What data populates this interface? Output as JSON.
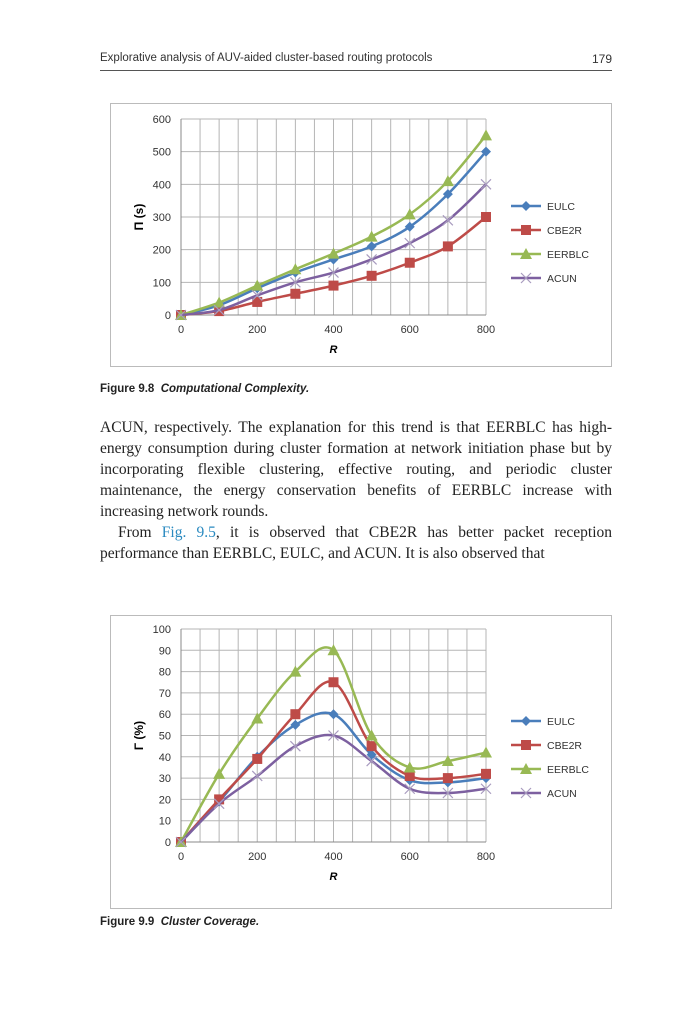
{
  "header": {
    "running_title": "Explorative analysis of AUV-aided cluster-based routing protocols",
    "page_number": "179"
  },
  "figure1": {
    "label": "Figure 9.8",
    "caption": "Computational Complexity."
  },
  "figure2": {
    "label": "Figure 9.9",
    "caption": "Cluster Coverage."
  },
  "body": {
    "para1": "ACUN, respectively. The explanation for this trend is that EERBLC has high-energy consumption during cluster formation at network initiation phase but by incorporating flexible clustering, effective routing, and periodic cluster maintenance, the energy conservation benefits of EERBLC increase with increasing network rounds.",
    "para2_pre": "From ",
    "para2_link": "Fig. 9.5",
    "para2_post": ", it is observed that CBE2R has better packet reception performance than EERBLC, EULC, and ACUN. It is also observed that"
  },
  "chart_data": [
    {
      "type": "line",
      "xlabel": "R",
      "ylabel": "Π (s)",
      "xlim": [
        0,
        800
      ],
      "ylim": [
        0,
        600
      ],
      "xticks": [
        0,
        200,
        400,
        600,
        800
      ],
      "yticks": [
        0,
        100,
        200,
        300,
        400,
        500,
        600
      ],
      "grid": true,
      "legend": "right",
      "x": [
        0,
        100,
        200,
        300,
        400,
        500,
        600,
        700,
        800
      ],
      "series": [
        {
          "name": "EULC",
          "color": "#4a7ebb",
          "marker": "diamond",
          "values": [
            0,
            30,
            82,
            130,
            170,
            210,
            270,
            370,
            500
          ]
        },
        {
          "name": "CBE2R",
          "color": "#be4b48",
          "marker": "square",
          "values": [
            0,
            12,
            40,
            65,
            90,
            120,
            160,
            210,
            300
          ]
        },
        {
          "name": "EERBLC",
          "color": "#98b954",
          "marker": "triangle",
          "values": [
            0,
            38,
            90,
            140,
            188,
            240,
            308,
            410,
            550
          ]
        },
        {
          "name": "ACUN",
          "color": "#7d60a0",
          "marker": "x",
          "values": [
            0,
            15,
            60,
            100,
            130,
            170,
            220,
            290,
            400
          ]
        }
      ]
    },
    {
      "type": "line",
      "xlabel": "R",
      "ylabel": "Γ (%)",
      "xlim": [
        0,
        800
      ],
      "ylim": [
        0,
        100
      ],
      "xticks": [
        0,
        200,
        400,
        600,
        800
      ],
      "yticks": [
        0,
        10,
        20,
        30,
        40,
        50,
        60,
        70,
        80,
        90,
        100
      ],
      "grid": true,
      "legend": "right",
      "x": [
        0,
        100,
        200,
        300,
        400,
        500,
        600,
        700,
        800
      ],
      "series": [
        {
          "name": "EULC",
          "color": "#4a7ebb",
          "marker": "diamond",
          "values": [
            0,
            19,
            40,
            55,
            60,
            41,
            29,
            28,
            30
          ]
        },
        {
          "name": "CBE2R",
          "color": "#be4b48",
          "marker": "square",
          "values": [
            0,
            20,
            39,
            60,
            75,
            45,
            31,
            30,
            32
          ]
        },
        {
          "name": "EERBLC",
          "color": "#98b954",
          "marker": "triangle",
          "values": [
            0,
            32,
            58,
            80,
            90,
            50,
            35,
            38,
            42
          ]
        },
        {
          "name": "ACUN",
          "color": "#7d60a0",
          "marker": "x",
          "values": [
            0,
            18,
            31,
            45,
            50,
            38,
            25,
            23,
            25
          ]
        }
      ]
    }
  ]
}
